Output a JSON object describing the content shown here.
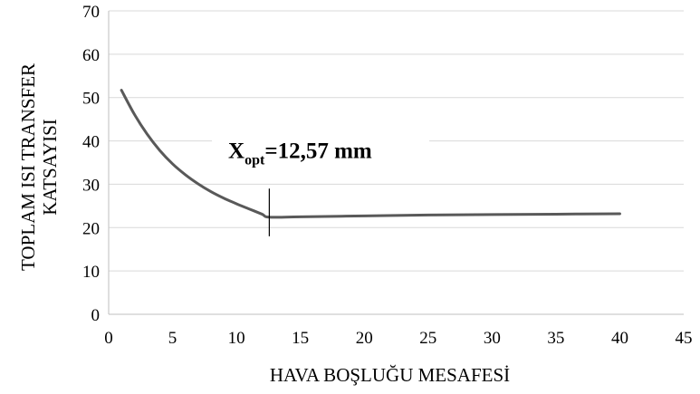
{
  "chart_data": {
    "type": "line",
    "title": "",
    "xlabel": "HAVA BOŞLUĞU MESAFESİ",
    "ylabel_lines": [
      "TOPLAM ISI TRANSFER",
      "KATSAYISI"
    ],
    "xlim": [
      0,
      45
    ],
    "ylim": [
      0,
      70
    ],
    "x_ticks": [
      0,
      5,
      10,
      15,
      20,
      25,
      30,
      35,
      40,
      45
    ],
    "y_ticks": [
      0,
      10,
      20,
      30,
      40,
      50,
      60,
      70
    ],
    "grid": "horizontal",
    "legend": "none",
    "series": [
      {
        "x": [
          1,
          2,
          3,
          4,
          5,
          6,
          7,
          8,
          9,
          10,
          11,
          12,
          12.57,
          15,
          20,
          25,
          30,
          35,
          40
        ],
        "y": [
          51.7,
          46.2,
          41.6,
          37.8,
          34.7,
          32.2,
          30.1,
          28.3,
          26.8,
          25.5,
          24.3,
          23.1,
          22.4,
          22.5,
          22.7,
          22.9,
          23.0,
          23.1,
          23.2
        ]
      }
    ],
    "annotation": {
      "main": "X",
      "sub": "opt",
      "rest": "=12,57 mm",
      "x": 12.57,
      "y_range": [
        18,
        29
      ],
      "label_anchor_x": 9.5,
      "label_anchor_y": 36
    }
  },
  "colors": {
    "line": "#595959",
    "grid": "#d9d9d9",
    "axis": "#bfbfbf",
    "marker": "#000000"
  }
}
